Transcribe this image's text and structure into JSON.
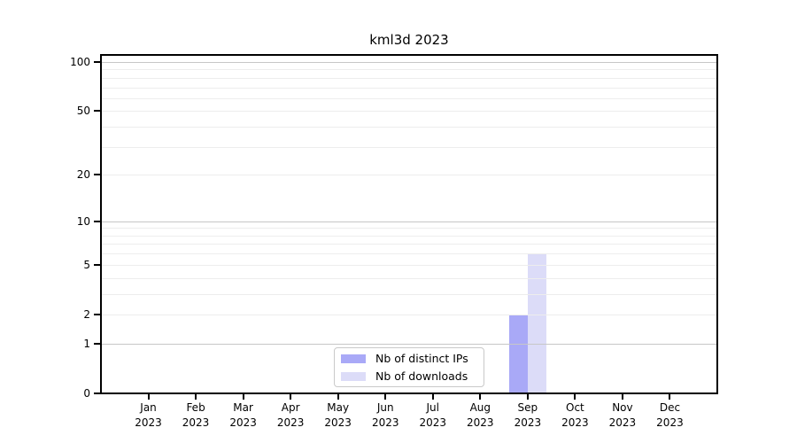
{
  "chart_data": {
    "type": "bar",
    "title": "kml3d 2023",
    "categories": [
      "Jan",
      "Feb",
      "Mar",
      "Apr",
      "May",
      "Jun",
      "Jul",
      "Aug",
      "Sep",
      "Oct",
      "Nov",
      "Dec"
    ],
    "x_year_label": "2023",
    "series": [
      {
        "name": "Nb of distinct IPs",
        "color": "#a9a9f7",
        "values": [
          0,
          0,
          0,
          0,
          0,
          0,
          0,
          0,
          2,
          0,
          0,
          0
        ]
      },
      {
        "name": "Nb of downloads",
        "color": "#dcdcf8",
        "values": [
          0,
          0,
          0,
          0,
          0,
          0,
          0,
          0,
          6,
          0,
          0,
          0
        ]
      }
    ],
    "xlabel": "",
    "ylabel": "",
    "yscale": "log1p",
    "ylim": [
      0,
      110
    ],
    "y_ticks": [
      0,
      1,
      2,
      5,
      10,
      20,
      50,
      100
    ],
    "gridline_values": [
      1,
      2,
      3,
      4,
      5,
      6,
      7,
      8,
      9,
      10,
      20,
      30,
      40,
      50,
      60,
      70,
      80,
      90,
      100
    ],
    "major_gridline_values": [
      1,
      10,
      100
    ],
    "grid": "horizontal",
    "legend_position": "bottom-center",
    "colors": {
      "axis": "#000000",
      "grid_minor": "#ededed",
      "grid_major": "#c7c7c7",
      "background": "#ffffff",
      "text": "#000000"
    }
  }
}
